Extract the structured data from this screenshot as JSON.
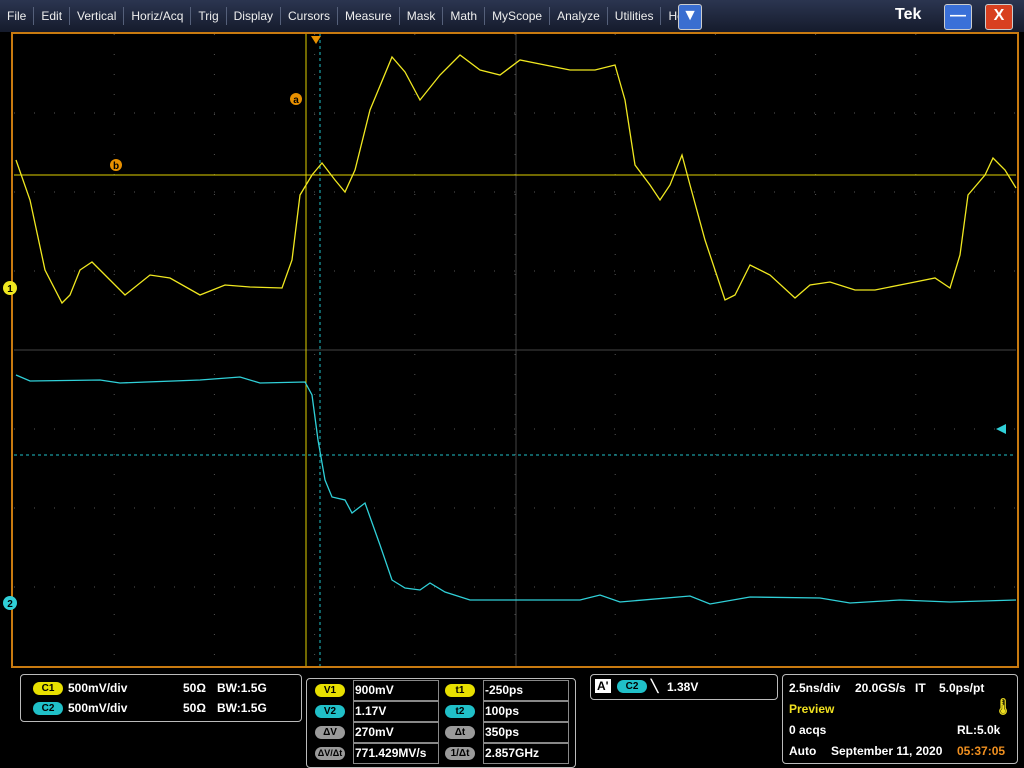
{
  "menu": [
    "File",
    "Edit",
    "Vertical",
    "Horiz/Acq",
    "Trig",
    "Display",
    "Cursors",
    "Measure",
    "Mask",
    "Math",
    "MyScope",
    "Analyze",
    "Utilities",
    "Help"
  ],
  "brand": "Tek",
  "markers": {
    "ch1": "1",
    "ch2": "2",
    "cursor_a": "a",
    "cursor_b": "b"
  },
  "channels": [
    {
      "badge": "C1",
      "scale": "500mV/div",
      "termination": "50Ω",
      "bandwidth": "BW:1.5G"
    },
    {
      "badge": "C2",
      "scale": "500mV/div",
      "termination": "50Ω",
      "bandwidth": "BW:1.5G"
    }
  ],
  "cursors": {
    "voltage": [
      {
        "label": "V1",
        "value": "900mV"
      },
      {
        "label": "V2",
        "value": "1.17V"
      },
      {
        "label": "ΔV",
        "value": "270mV"
      },
      {
        "label": "ΔV/Δt",
        "value": "771.429MV/s"
      }
    ],
    "time": [
      {
        "label": "t1",
        "value": "-250ps"
      },
      {
        "label": "t2",
        "value": "100ps"
      },
      {
        "label": "Δt",
        "value": "350ps"
      },
      {
        "label": "1/Δt",
        "value": "2.857GHz"
      }
    ]
  },
  "trigger": {
    "mode": "A'",
    "source": "C2",
    "level": "1.38V"
  },
  "horizontal": {
    "scale": "2.5ns/div",
    "rate": "20.0GS/s",
    "mode": "IT",
    "resolution": "5.0ps/pt",
    "state": "Preview",
    "acqs": "0 acqs",
    "record": "RL:5.0k",
    "run": "Auto",
    "date": "September 11, 2020",
    "time": "05:37:05"
  }
}
